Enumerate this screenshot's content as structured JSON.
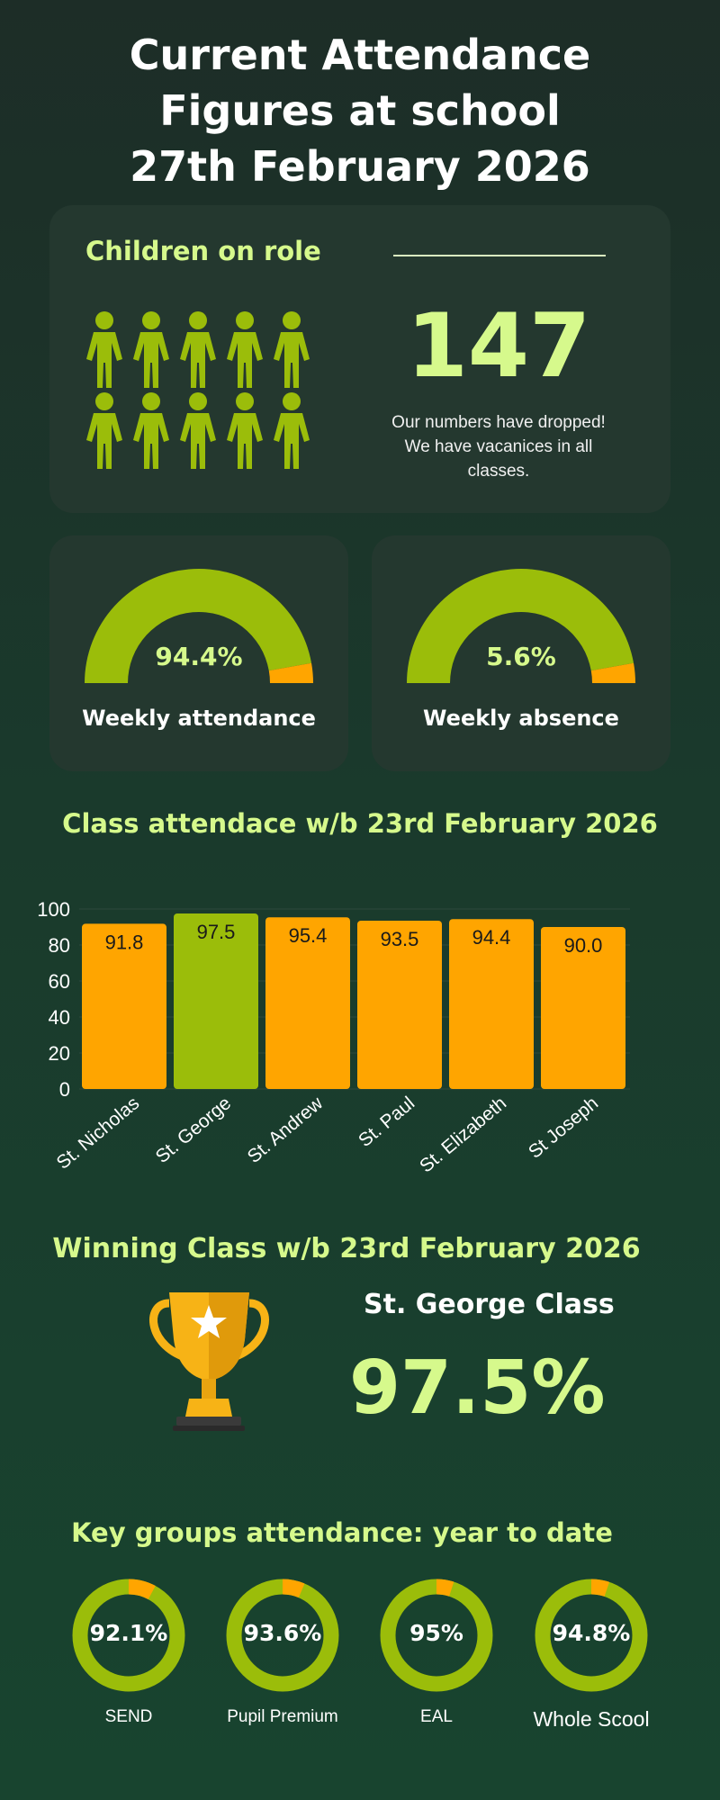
{
  "title": {
    "line1": "Current Attendance",
    "line2": "Figures at school",
    "line3": "27th February 2026"
  },
  "role": {
    "heading": "Children on role",
    "count": "147",
    "note_line1": "Our numbers have dropped!",
    "note_line2": "We have vacanices in all",
    "note_line3": "classes.",
    "icon": "person-icon",
    "icon_color": "#9bbd0a"
  },
  "attendance_gauge": {
    "value": "94.4%",
    "fraction": 0.944,
    "label": "Weekly attendance"
  },
  "absence_gauge": {
    "value": "5.6%",
    "fraction": 0.056,
    "label": "Weekly absence"
  },
  "colors": {
    "green": "#9bbd0a",
    "orange": "#ffa500",
    "lime_text": "#d6f98c",
    "card": "#24382f"
  },
  "class_chart_heading": "Class attendace w/b 23rd February 2026",
  "winner": {
    "heading": "Winning Class w/b 23rd February 2026",
    "name": "St. George Class",
    "value": "97.5%",
    "icon": "trophy-icon"
  },
  "key_groups": {
    "heading": "Key groups attendance: year to date",
    "items": [
      {
        "label": "SEND",
        "value": "92.1%",
        "fraction": 0.921
      },
      {
        "label": "Pupil Premium",
        "value": "93.6%",
        "fraction": 0.936
      },
      {
        "label": "EAL",
        "value": "95%",
        "fraction": 0.95
      },
      {
        "label": "Whole Scool",
        "value": "94.8%",
        "fraction": 0.948
      }
    ]
  },
  "chart_data": {
    "type": "bar",
    "categories": [
      "St. Nicholas",
      "St. George",
      "St. Andrew",
      "St. Paul",
      "St. Elizabeth",
      "St Joseph"
    ],
    "values": [
      91.8,
      97.5,
      95.4,
      93.5,
      94.4,
      90.0
    ],
    "value_labels": [
      "91.8",
      "97.5",
      "95.4",
      "93.5",
      "94.4",
      "90.0"
    ],
    "highlight_index": 1,
    "bar_colors": [
      "#ffa500",
      "#9bbd0a",
      "#ffa500",
      "#ffa500",
      "#ffa500",
      "#ffa500"
    ],
    "y_ticks": [
      "0",
      "20",
      "40",
      "60",
      "80",
      "100"
    ],
    "ylim": [
      0,
      100
    ],
    "grid": true,
    "title": "",
    "xlabel": "",
    "ylabel": ""
  }
}
